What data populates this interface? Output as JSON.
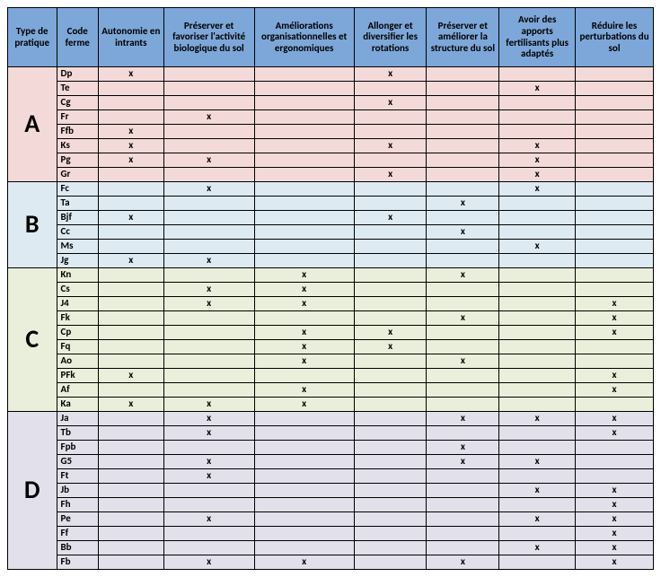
{
  "headers": {
    "type": "Type de pratique",
    "code": "Code ferme",
    "auto": "Autonomie en intrants",
    "bio": "Préserver et favoriser l'activité biologique du sol",
    "org": "Améliorations organisationnelles et ergonomiques",
    "rot": "Allonger et diversifier les rotations",
    "struct": "Préserver et améliorer la structure du sol",
    "fert": "Avoir des apports fertilisants plus adaptés",
    "pert": "Réduire les perturbations du sol"
  },
  "header_bg": "#7da7d8",
  "mark": "x",
  "groups": [
    {
      "label": "A",
      "bg": "#f3dad8",
      "rows": [
        {
          "code": "Dp",
          "auto": true,
          "bio": false,
          "org": false,
          "rot": true,
          "struct": false,
          "fert": false,
          "pert": false
        },
        {
          "code": "Te",
          "auto": false,
          "bio": false,
          "org": false,
          "rot": false,
          "struct": false,
          "fert": true,
          "pert": false
        },
        {
          "code": "Cg",
          "auto": false,
          "bio": false,
          "org": false,
          "rot": true,
          "struct": false,
          "fert": false,
          "pert": false
        },
        {
          "code": "Fr",
          "auto": false,
          "bio": true,
          "org": false,
          "rot": false,
          "struct": false,
          "fert": false,
          "pert": false
        },
        {
          "code": "Ffb",
          "auto": true,
          "bio": false,
          "org": false,
          "rot": false,
          "struct": false,
          "fert": false,
          "pert": false
        },
        {
          "code": "Ks",
          "auto": true,
          "bio": false,
          "org": false,
          "rot": true,
          "struct": false,
          "fert": true,
          "pert": false
        },
        {
          "code": "Pg",
          "auto": true,
          "bio": true,
          "org": false,
          "rot": false,
          "struct": false,
          "fert": true,
          "pert": false
        },
        {
          "code": "Gr",
          "auto": false,
          "bio": false,
          "org": false,
          "rot": true,
          "struct": false,
          "fert": true,
          "pert": false
        }
      ]
    },
    {
      "label": "B",
      "bg": "#deeaf1",
      "rows": [
        {
          "code": "Fc",
          "auto": false,
          "bio": true,
          "org": false,
          "rot": false,
          "struct": false,
          "fert": true,
          "pert": false
        },
        {
          "code": "Ta",
          "auto": false,
          "bio": false,
          "org": false,
          "rot": false,
          "struct": true,
          "fert": false,
          "pert": false
        },
        {
          "code": "Bjf",
          "auto": true,
          "bio": false,
          "org": false,
          "rot": true,
          "struct": false,
          "fert": false,
          "pert": false
        },
        {
          "code": "Cc",
          "auto": false,
          "bio": false,
          "org": false,
          "rot": false,
          "struct": true,
          "fert": false,
          "pert": false
        },
        {
          "code": "Ms",
          "auto": false,
          "bio": false,
          "org": false,
          "rot": false,
          "struct": false,
          "fert": true,
          "pert": false
        },
        {
          "code": "Jg",
          "auto": true,
          "bio": true,
          "org": false,
          "rot": false,
          "struct": false,
          "fert": false,
          "pert": false
        }
      ]
    },
    {
      "label": "C",
      "bg": "#e9efda",
      "rows": [
        {
          "code": "Kn",
          "auto": false,
          "bio": false,
          "org": true,
          "rot": false,
          "struct": true,
          "fert": false,
          "pert": false
        },
        {
          "code": "Cs",
          "auto": false,
          "bio": true,
          "org": true,
          "rot": false,
          "struct": false,
          "fert": false,
          "pert": false
        },
        {
          "code": "J4",
          "auto": false,
          "bio": true,
          "org": true,
          "rot": false,
          "struct": false,
          "fert": false,
          "pert": true
        },
        {
          "code": "Fk",
          "auto": false,
          "bio": false,
          "org": false,
          "rot": false,
          "struct": true,
          "fert": false,
          "pert": true
        },
        {
          "code": "Cp",
          "auto": false,
          "bio": false,
          "org": true,
          "rot": true,
          "struct": false,
          "fert": false,
          "pert": true
        },
        {
          "code": "Fq",
          "auto": false,
          "bio": false,
          "org": true,
          "rot": true,
          "struct": false,
          "fert": false,
          "pert": false
        },
        {
          "code": "Ao",
          "auto": false,
          "bio": false,
          "org": true,
          "rot": false,
          "struct": true,
          "fert": false,
          "pert": false
        },
        {
          "code": "PFk",
          "auto": true,
          "bio": false,
          "org": false,
          "rot": false,
          "struct": false,
          "fert": false,
          "pert": true
        },
        {
          "code": "Af",
          "auto": false,
          "bio": false,
          "org": true,
          "rot": false,
          "struct": false,
          "fert": false,
          "pert": true
        },
        {
          "code": "Ka",
          "auto": true,
          "bio": true,
          "org": true,
          "rot": false,
          "struct": false,
          "fert": false,
          "pert": false
        }
      ]
    },
    {
      "label": "D",
      "bg": "#e2e0ea",
      "rows": [
        {
          "code": "Ja",
          "auto": false,
          "bio": true,
          "org": false,
          "rot": false,
          "struct": true,
          "fert": true,
          "pert": true
        },
        {
          "code": "Tb",
          "auto": false,
          "bio": true,
          "org": false,
          "rot": false,
          "struct": false,
          "fert": false,
          "pert": true
        },
        {
          "code": "Fpb",
          "auto": false,
          "bio": false,
          "org": false,
          "rot": false,
          "struct": true,
          "fert": false,
          "pert": false
        },
        {
          "code": "G5",
          "auto": false,
          "bio": true,
          "org": false,
          "rot": false,
          "struct": true,
          "fert": true,
          "pert": false
        },
        {
          "code": "Ft",
          "auto": false,
          "bio": true,
          "org": false,
          "rot": false,
          "struct": false,
          "fert": false,
          "pert": false
        },
        {
          "code": "Jb",
          "auto": false,
          "bio": false,
          "org": false,
          "rot": false,
          "struct": false,
          "fert": true,
          "pert": true
        },
        {
          "code": "Fh",
          "auto": false,
          "bio": false,
          "org": false,
          "rot": false,
          "struct": false,
          "fert": false,
          "pert": true
        },
        {
          "code": "Pe",
          "auto": false,
          "bio": true,
          "org": false,
          "rot": false,
          "struct": false,
          "fert": true,
          "pert": true
        },
        {
          "code": "Ff",
          "auto": false,
          "bio": false,
          "org": false,
          "rot": false,
          "struct": false,
          "fert": false,
          "pert": true
        },
        {
          "code": "Bb",
          "auto": false,
          "bio": false,
          "org": false,
          "rot": false,
          "struct": false,
          "fert": true,
          "pert": true
        },
        {
          "code": "Fb",
          "auto": false,
          "bio": true,
          "org": true,
          "rot": false,
          "struct": true,
          "fert": false,
          "pert": true
        }
      ]
    }
  ]
}
